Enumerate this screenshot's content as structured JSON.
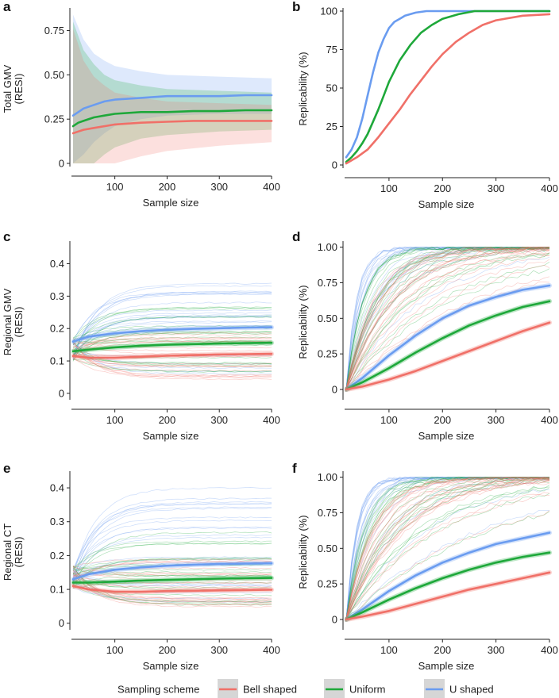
{
  "colors": {
    "bell": "#f07068",
    "uniform": "#1ea83a",
    "ushaped": "#6a9cf0",
    "legend_box": "#d6d6d6"
  },
  "legend": {
    "title": "Sampling scheme",
    "items": [
      {
        "label": "Bell shaped",
        "color": "#f07068"
      },
      {
        "label": "Uniform",
        "color": "#1ea83a"
      },
      {
        "label": "U shaped",
        "color": "#6a9cf0"
      }
    ]
  },
  "chart_data": [
    {
      "panel": "a",
      "type": "line",
      "ylabel_lines": [
        "Total GMV",
        "(RESI)"
      ],
      "xlabel": "Sample size",
      "xlim": [
        20,
        400
      ],
      "ylim": [
        0,
        0.86
      ],
      "xticks": [
        100,
        200,
        300,
        400
      ],
      "yticks": [
        0,
        0.25,
        0.5,
        0.75
      ],
      "ytick_labels": [
        "0",
        "0.25",
        "0.50",
        "0.75"
      ],
      "bands": [
        {
          "series": "U shaped",
          "x": [
            20,
            40,
            60,
            80,
            100,
            150,
            200,
            300,
            400
          ],
          "lower": [
            0.0,
            0.05,
            0.12,
            0.17,
            0.21,
            0.25,
            0.27,
            0.28,
            0.28
          ],
          "upper": [
            0.84,
            0.7,
            0.62,
            0.58,
            0.55,
            0.52,
            0.5,
            0.49,
            0.48
          ]
        },
        {
          "series": "Uniform",
          "x": [
            20,
            40,
            60,
            80,
            100,
            150,
            200,
            300,
            400
          ],
          "lower": [
            0.0,
            0.0,
            0.0,
            0.05,
            0.09,
            0.14,
            0.16,
            0.18,
            0.19
          ],
          "upper": [
            0.8,
            0.64,
            0.56,
            0.5,
            0.47,
            0.44,
            0.42,
            0.41,
            0.4
          ]
        },
        {
          "series": "Bell shaped",
          "x": [
            20,
            40,
            60,
            80,
            100,
            150,
            200,
            300,
            400
          ],
          "lower": [
            0.0,
            0.0,
            0.0,
            0.0,
            0.0,
            0.04,
            0.07,
            0.1,
            0.12
          ],
          "upper": [
            0.76,
            0.58,
            0.49,
            0.44,
            0.4,
            0.37,
            0.35,
            0.34,
            0.33
          ]
        }
      ],
      "series": [
        {
          "name": "U shaped",
          "x": [
            20,
            30,
            40,
            60,
            80,
            100,
            150,
            200,
            250,
            300,
            350,
            400
          ],
          "y": [
            0.27,
            0.29,
            0.31,
            0.33,
            0.35,
            0.36,
            0.37,
            0.38,
            0.38,
            0.38,
            0.385,
            0.385
          ]
        },
        {
          "name": "Uniform",
          "x": [
            20,
            30,
            40,
            60,
            80,
            100,
            150,
            200,
            250,
            300,
            350,
            400
          ],
          "y": [
            0.21,
            0.23,
            0.24,
            0.26,
            0.27,
            0.28,
            0.29,
            0.29,
            0.295,
            0.295,
            0.3,
            0.3
          ]
        },
        {
          "name": "Bell shaped",
          "x": [
            20,
            30,
            40,
            60,
            80,
            100,
            150,
            200,
            250,
            300,
            350,
            400
          ],
          "y": [
            0.17,
            0.18,
            0.19,
            0.2,
            0.21,
            0.22,
            0.23,
            0.235,
            0.24,
            0.24,
            0.24,
            0.24
          ]
        }
      ]
    },
    {
      "panel": "b",
      "type": "line",
      "ylabel_lines": [
        "Replicability (%)"
      ],
      "xlabel": "Sample size",
      "xlim": [
        20,
        400
      ],
      "ylim": [
        0,
        100
      ],
      "xticks": [
        100,
        200,
        300,
        400
      ],
      "yticks": [
        0,
        25,
        50,
        75,
        100
      ],
      "ytick_labels": [
        "0",
        "25",
        "50",
        "75",
        "100"
      ],
      "series": [
        {
          "name": "U shaped",
          "x": [
            20,
            30,
            40,
            50,
            60,
            70,
            80,
            90,
            100,
            110,
            120,
            130,
            150,
            170,
            200,
            250,
            300,
            400
          ],
          "y": [
            5,
            10,
            18,
            30,
            45,
            60,
            73,
            82,
            89,
            93,
            95,
            97,
            99,
            100,
            100,
            100,
            100,
            100
          ]
        },
        {
          "name": "Uniform",
          "x": [
            20,
            30,
            40,
            50,
            60,
            70,
            80,
            90,
            100,
            120,
            140,
            160,
            180,
            200,
            230,
            260,
            300,
            400
          ],
          "y": [
            2,
            5,
            9,
            14,
            20,
            28,
            36,
            45,
            54,
            68,
            78,
            86,
            91,
            95,
            98,
            100,
            100,
            100
          ]
        },
        {
          "name": "Bell shaped",
          "x": [
            20,
            40,
            60,
            80,
            100,
            120,
            140,
            160,
            180,
            200,
            225,
            250,
            275,
            300,
            350,
            400
          ],
          "y": [
            1,
            5,
            10,
            18,
            27,
            36,
            46,
            55,
            64,
            72,
            80,
            86,
            91,
            94,
            97,
            98
          ]
        }
      ]
    },
    {
      "panel": "c",
      "type": "line",
      "ylabel_lines": [
        "Regional GMV",
        "(RESI)"
      ],
      "xlabel": "Sample size",
      "xlim": [
        20,
        400
      ],
      "ylim": [
        -0.01,
        0.46
      ],
      "xticks": [
        100,
        200,
        300,
        400
      ],
      "yticks": [
        0,
        0.1,
        0.2,
        0.3,
        0.4
      ],
      "ytick_labels": [
        "0",
        "0.1",
        "0.2",
        "0.3",
        "0.4"
      ],
      "series": [
        {
          "name": "U shaped",
          "x": [
            20,
            50,
            100,
            150,
            200,
            250,
            300,
            350,
            400
          ],
          "y": [
            0.16,
            0.175,
            0.185,
            0.192,
            0.196,
            0.199,
            0.201,
            0.203,
            0.204
          ]
        },
        {
          "name": "Uniform",
          "x": [
            20,
            50,
            100,
            150,
            200,
            250,
            300,
            350,
            400
          ],
          "y": [
            0.13,
            0.135,
            0.142,
            0.147,
            0.15,
            0.152,
            0.154,
            0.155,
            0.156
          ]
        },
        {
          "name": "Bell shaped",
          "x": [
            20,
            50,
            100,
            150,
            200,
            250,
            300,
            350,
            400
          ],
          "y": [
            0.115,
            0.11,
            0.11,
            0.113,
            0.116,
            0.118,
            0.12,
            0.121,
            0.122
          ]
        }
      ]
    },
    {
      "panel": "d",
      "type": "line",
      "ylabel_lines": [
        "Replicability (%)"
      ],
      "xlabel": "Sample size",
      "xlim": [
        20,
        400
      ],
      "ylim": [
        -0.05,
        1.02
      ],
      "xticks": [
        100,
        200,
        300,
        400
      ],
      "yticks": [
        0,
        0.25,
        0.5,
        0.75,
        1.0
      ],
      "ytick_labels": [
        "0",
        "0.25",
        "0.50",
        "0.75",
        "1.00"
      ],
      "series": [
        {
          "name": "U shaped",
          "x": [
            20,
            50,
            100,
            150,
            200,
            250,
            300,
            350,
            400
          ],
          "y": [
            0.0,
            0.08,
            0.24,
            0.38,
            0.5,
            0.59,
            0.65,
            0.7,
            0.73
          ]
        },
        {
          "name": "Uniform",
          "x": [
            20,
            50,
            100,
            150,
            200,
            250,
            300,
            350,
            400
          ],
          "y": [
            0.0,
            0.05,
            0.15,
            0.26,
            0.36,
            0.45,
            0.52,
            0.58,
            0.62
          ]
        },
        {
          "name": "Bell shaped",
          "x": [
            20,
            50,
            100,
            150,
            200,
            250,
            300,
            350,
            400
          ],
          "y": [
            0.0,
            0.02,
            0.07,
            0.13,
            0.2,
            0.27,
            0.34,
            0.41,
            0.47
          ]
        }
      ]
    },
    {
      "panel": "e",
      "type": "line",
      "ylabel_lines": [
        "Regional CT",
        "(RESI)"
      ],
      "xlabel": "Sample size",
      "xlim": [
        20,
        400
      ],
      "ylim": [
        -0.01,
        0.44
      ],
      "xticks": [
        100,
        200,
        300,
        400
      ],
      "yticks": [
        0,
        0.1,
        0.2,
        0.3,
        0.4
      ],
      "ytick_labels": [
        "0",
        "0.1",
        "0.2",
        "0.3",
        "0.4"
      ],
      "series": [
        {
          "name": "U shaped",
          "x": [
            20,
            50,
            100,
            150,
            200,
            250,
            300,
            350,
            400
          ],
          "y": [
            0.13,
            0.145,
            0.158,
            0.165,
            0.17,
            0.173,
            0.175,
            0.176,
            0.177
          ]
        },
        {
          "name": "Uniform",
          "x": [
            20,
            50,
            100,
            150,
            200,
            250,
            300,
            350,
            400
          ],
          "y": [
            0.12,
            0.12,
            0.123,
            0.126,
            0.128,
            0.13,
            0.132,
            0.133,
            0.134
          ]
        },
        {
          "name": "Bell shaped",
          "x": [
            20,
            50,
            100,
            150,
            200,
            250,
            300,
            350,
            400
          ],
          "y": [
            0.11,
            0.1,
            0.093,
            0.093,
            0.095,
            0.096,
            0.097,
            0.098,
            0.099
          ]
        }
      ]
    },
    {
      "panel": "f",
      "type": "line",
      "ylabel_lines": [
        "Replicability (%)"
      ],
      "xlabel": "Sample size",
      "xlim": [
        20,
        400
      ],
      "ylim": [
        -0.05,
        1.02
      ],
      "xticks": [
        100,
        200,
        300,
        400
      ],
      "yticks": [
        0,
        0.25,
        0.5,
        0.75,
        1.0
      ],
      "ytick_labels": [
        "0",
        "0.25",
        "0.50",
        "0.75",
        "1.00"
      ],
      "series": [
        {
          "name": "U shaped",
          "x": [
            20,
            50,
            100,
            150,
            200,
            250,
            300,
            350,
            400
          ],
          "y": [
            0.0,
            0.07,
            0.2,
            0.31,
            0.4,
            0.47,
            0.53,
            0.57,
            0.61
          ]
        },
        {
          "name": "Uniform",
          "x": [
            20,
            50,
            100,
            150,
            200,
            250,
            300,
            350,
            400
          ],
          "y": [
            0.0,
            0.05,
            0.14,
            0.22,
            0.29,
            0.35,
            0.4,
            0.44,
            0.47
          ]
        },
        {
          "name": "Bell shaped",
          "x": [
            20,
            50,
            100,
            150,
            200,
            250,
            300,
            350,
            400
          ],
          "y": [
            0.0,
            0.02,
            0.06,
            0.11,
            0.16,
            0.21,
            0.25,
            0.29,
            0.33
          ]
        }
      ]
    }
  ]
}
